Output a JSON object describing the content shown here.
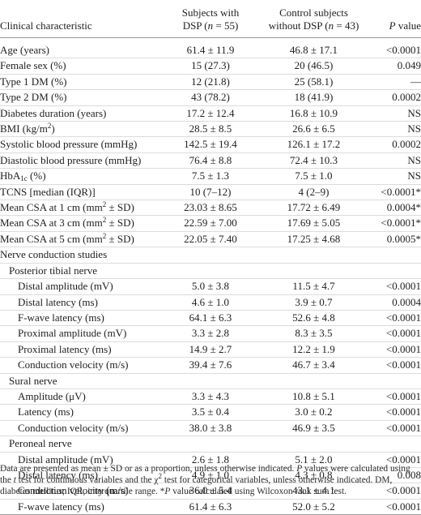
{
  "header": {
    "characteristic": "Clinical characteristic",
    "dsp_line1": "Subjects with",
    "dsp_line2_pre": "DSP (",
    "dsp_n_var": "n",
    "dsp_line2_post": " = 55)",
    "ctl_line1": "Control subjects",
    "ctl_line2_pre": "without DSP (",
    "ctl_n_var": "n",
    "ctl_line2_post": " = 43)",
    "p_var": "P",
    "p_post": " value"
  },
  "rows": [
    {
      "kind": "data",
      "indent": 0,
      "label": "Age (years)",
      "dsp": "61.4 ± 11.9",
      "ctl": "46.8 ± 17.1",
      "p": "<0.0001"
    },
    {
      "kind": "data",
      "indent": 0,
      "label": "Female sex (%)",
      "dsp": "15 (27.3)",
      "ctl": "20 (46.5)",
      "p": "0.049"
    },
    {
      "kind": "data",
      "indent": 0,
      "label": "Type 1 DM (%)",
      "dsp": "12 (21.8)",
      "ctl": "25 (58.1)",
      "p": "—"
    },
    {
      "kind": "data",
      "indent": 0,
      "label": "Type 2 DM (%)",
      "dsp": "43 (78.2)",
      "ctl": "18 (41.9)",
      "p": "0.0002"
    },
    {
      "kind": "data",
      "indent": 0,
      "label": "Diabetes duration (years)",
      "dsp": "17.2 ± 12.4",
      "ctl": "16.8 ± 10.9",
      "p": "NS"
    },
    {
      "kind": "data",
      "indent": 0,
      "label": "BMI (kg/m",
      "label_sup": "2",
      "label_post": ")",
      "dsp": "28.5 ± 8.5",
      "ctl": "26.6 ± 6.5",
      "p": "NS"
    },
    {
      "kind": "data",
      "indent": 0,
      "label": "Systolic blood pressure (mmHg)",
      "dsp": "142.5 ± 19.4",
      "ctl": "126.1 ± 17.2",
      "p": "0.0002"
    },
    {
      "kind": "data",
      "indent": 0,
      "label": "Diastolic blood pressure (mmHg)",
      "dsp": "76.4 ± 8.8",
      "ctl": "72.4 ± 10.3",
      "p": "NS"
    },
    {
      "kind": "data",
      "indent": 0,
      "label": "HbA",
      "label_sub": "1c",
      "label_post": " (%)",
      "dsp": "7.5 ± 1.3",
      "ctl": "7.5 ± 1.0",
      "p": "NS"
    },
    {
      "kind": "data",
      "indent": 0,
      "label": "TCNS [median (IQR)]",
      "dsp": "10 (7–12)",
      "ctl": "4 (2–9)",
      "p": "<0.0001*"
    },
    {
      "kind": "data",
      "indent": 0,
      "label": "Mean CSA at 1 cm (mm",
      "label_sup": "2",
      "label_post": " ± SD)",
      "dsp": "23.03 ± 8.65",
      "ctl": "17.72 ± 6.49",
      "p": "0.0004*"
    },
    {
      "kind": "data",
      "indent": 0,
      "label": "Mean CSA at 3 cm (mm",
      "label_sup": "2",
      "label_post": " ± SD)",
      "dsp": "22.59 ± 7.00",
      "ctl": "17.69 ± 5.05",
      "p": "<0.0001*"
    },
    {
      "kind": "data",
      "indent": 0,
      "label": "Mean CSA at 5 cm (mm",
      "label_sup": "2",
      "label_post": " ± SD)",
      "dsp": "22.05 ± 7.40",
      "ctl": "17.25 ± 4.68",
      "p": "0.0005*"
    },
    {
      "kind": "section",
      "indent": 0,
      "label": "Nerve conduction studies"
    },
    {
      "kind": "section",
      "indent": 1,
      "label": "Posterior tibial nerve"
    },
    {
      "kind": "data",
      "indent": 2,
      "label": "Distal amplitude (mV)",
      "dsp": "5.0 ± 3.8",
      "ctl": "11.5 ± 4.7",
      "p": "<0.0001"
    },
    {
      "kind": "data",
      "indent": 2,
      "label": "Distal latency (ms)",
      "dsp": "4.6 ± 1.0",
      "ctl": "3.9 ± 0.7",
      "p": "0.0004"
    },
    {
      "kind": "data",
      "indent": 2,
      "label": "F-wave latency (ms)",
      "dsp": "64.1 ± 6.3",
      "ctl": "52.6 ± 4.8",
      "p": "<0.0001"
    },
    {
      "kind": "data",
      "indent": 2,
      "label": "Proximal amplitude (mV)",
      "dsp": "3.3 ± 2.8",
      "ctl": "8.3 ± 3.5",
      "p": "<0.0001"
    },
    {
      "kind": "data",
      "indent": 2,
      "label": "Proximal latency (ms)",
      "dsp": "14.9 ± 2.7",
      "ctl": "12.2 ± 1.9",
      "p": "<0.0001"
    },
    {
      "kind": "data",
      "indent": 2,
      "label": "Conduction velocity (m/s)",
      "dsp": "39.4 ± 7.6",
      "ctl": "46.7 ± 3.4",
      "p": "<0.0001"
    },
    {
      "kind": "section",
      "indent": 1,
      "label": "Sural nerve"
    },
    {
      "kind": "data",
      "indent": 2,
      "label": "Amplitude (μV)",
      "dsp": "3.3 ± 4.3",
      "ctl": "10.8 ± 5.1",
      "p": "<0.0001"
    },
    {
      "kind": "data",
      "indent": 2,
      "label": "Latency (ms)",
      "dsp": "3.5 ± 0.4",
      "ctl": "3.0 ± 0.2",
      "p": "<0.0001"
    },
    {
      "kind": "data",
      "indent": 2,
      "label": "Conduction velocity (m/s)",
      "dsp": "38.0 ± 3.8",
      "ctl": "46.9 ± 3.5",
      "p": "<0.0001"
    },
    {
      "kind": "section",
      "indent": 1,
      "label": "Peroneal nerve"
    },
    {
      "kind": "data",
      "indent": 2,
      "label": "Distal amplitude (mV)",
      "dsp": "2.6 ± 1.8",
      "ctl": "5.1 ± 2.0",
      "p": "<0.0001"
    },
    {
      "kind": "data",
      "indent": 2,
      "label": "Distal latency (ms)",
      "dsp": "4.9 ± 1.0",
      "ctl": "4.3 ± 0.8",
      "p": "0.008"
    },
    {
      "kind": "data",
      "indent": 2,
      "label": "Conduction velocity (m/s)",
      "dsp": "36.0 ± 5.4",
      "ctl": "43.1 ± 4.1",
      "p": "<0.0001"
    },
    {
      "kind": "data",
      "indent": 2,
      "label": "F-wave latency (ms)",
      "dsp": "61.4 ± 6.3",
      "ctl": "52.0 ± 5.2",
      "p": "<0.0001"
    }
  ],
  "footnote": {
    "s1": "Data are presented as mean ± SD or as a proportion, unless otherwise indicated. ",
    "s2_var": "P",
    "s3": " values were calculated using the ",
    "s4_var": "t",
    "s5": " test for continuous variables and the χ",
    "s6_sup": "2",
    "s7": " test for categorical variables, unless otherwise indicated. DM, diabetes mellitus; IQR, interquartile range. *",
    "s8_var": "P",
    "s9": " value calculated using Wilcoxon rank sum test."
  }
}
